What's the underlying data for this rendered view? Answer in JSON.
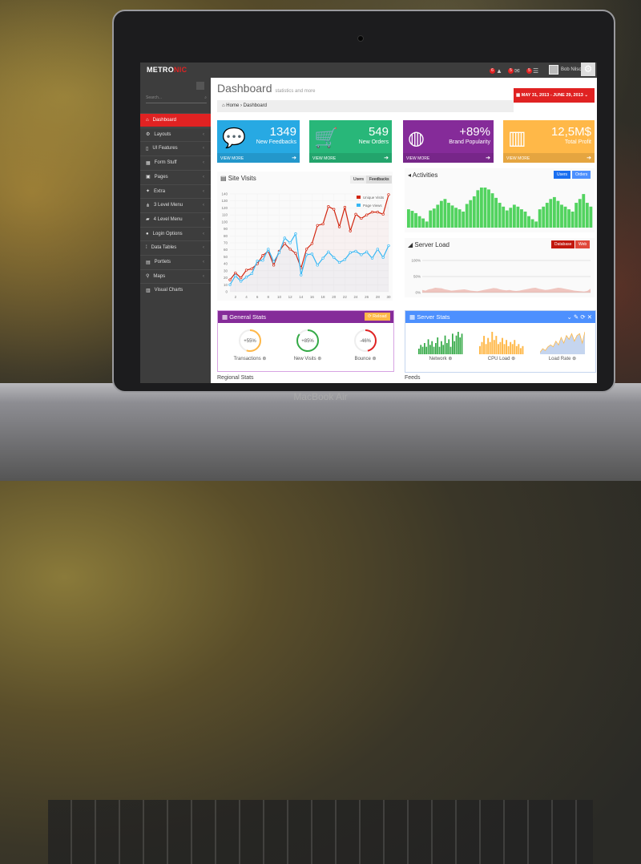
{
  "app": {
    "logo_main": "METRO",
    "logo_accent": "NIC",
    "device_brand": "MacBook Air"
  },
  "topbar": {
    "notifications": [
      {
        "icon": "warning-icon",
        "count": "6"
      },
      {
        "icon": "inbox-icon",
        "count": "5"
      },
      {
        "icon": "tasks-icon",
        "count": "5"
      }
    ],
    "user_name": "Bob Nilson"
  },
  "sidebar": {
    "search_placeholder": "Search...",
    "items": [
      {
        "label": "Dashboard",
        "icon": "home-icon",
        "active": true
      },
      {
        "label": "Layouts",
        "icon": "cogs-icon"
      },
      {
        "label": "UI Features",
        "icon": "bookmark-icon"
      },
      {
        "label": "Form Stuff",
        "icon": "table-icon"
      },
      {
        "label": "Pages",
        "icon": "briefcase-icon"
      },
      {
        "label": "Extra",
        "icon": "gift-icon"
      },
      {
        "label": "3 Level Menu",
        "icon": "sitemap-icon"
      },
      {
        "label": "4 Level Menu",
        "icon": "folder-icon"
      },
      {
        "label": "Login Options",
        "icon": "user-icon"
      },
      {
        "label": "Data Tables",
        "icon": "grid-icon"
      },
      {
        "label": "Portlets",
        "icon": "file-icon"
      },
      {
        "label": "Maps",
        "icon": "map-marker-icon"
      },
      {
        "label": "Visual Charts",
        "icon": "bar-chart-icon"
      }
    ]
  },
  "header": {
    "title": "Dashboard",
    "subtitle": "statistics and more",
    "breadcrumb": [
      "Home",
      "Dashboard"
    ],
    "date_range": "MAY 31, 2013 - JUNE 29, 2013"
  },
  "tiles": [
    {
      "value": "1349",
      "label": "New Feedbacks",
      "more": "VIEW MORE",
      "color": "#27a9e3",
      "icon": "comments-icon"
    },
    {
      "value": "549",
      "label": "New Orders",
      "more": "VIEW MORE",
      "color": "#28b779",
      "icon": "shopping-cart-icon"
    },
    {
      "value": "+89%",
      "label": "Brand Popularity",
      "more": "VIEW MORE",
      "color": "#852b99",
      "icon": "globe-icon"
    },
    {
      "value": "12,5M$",
      "label": "Total Profit",
      "more": "VIEW MORE",
      "color": "#ffb848",
      "icon": "bar-chart-icon"
    }
  ],
  "site_visits": {
    "title": "Site Visits",
    "tabs": [
      "Users",
      "Feedbacks"
    ]
  },
  "activities": {
    "title": "Activities",
    "tabs": [
      "Users",
      "Orders"
    ]
  },
  "server_load": {
    "title": "Server Load",
    "tabs": [
      "Database",
      "Web"
    ]
  },
  "general_stats": {
    "title": "General Stats",
    "reload": "Reload",
    "gauges": [
      {
        "value": "+55%",
        "label": "Transactions",
        "percent": 55,
        "color": "#ffb848"
      },
      {
        "value": "+85%",
        "label": "New Visits",
        "percent": 85,
        "color": "#35aa47"
      },
      {
        "value": "-46%",
        "label": "Bounce",
        "percent": 46,
        "color": "#e02222"
      }
    ]
  },
  "server_stats": {
    "title": "Server Stats",
    "sparks": [
      {
        "label": "Network",
        "type": "bar",
        "color": "#35aa47",
        "values": [
          3,
          5,
          4,
          6,
          4,
          8,
          5,
          7,
          4,
          6,
          9,
          4,
          7,
          5,
          10,
          6,
          8,
          4,
          11,
          7,
          10,
          12,
          9,
          11
        ]
      },
      {
        "label": "CPU Load",
        "type": "bar",
        "color": "#ffb848",
        "values": [
          4,
          6,
          9,
          5,
          8,
          6,
          11,
          7,
          9,
          5,
          6,
          8,
          5,
          7,
          4,
          6,
          5,
          7,
          4,
          5,
          3,
          4
        ]
      },
      {
        "label": "Load Rate",
        "type": "area",
        "color": "#ffb848",
        "fill": "#c5d5ef",
        "values": [
          1,
          3,
          2,
          4,
          5,
          4,
          7,
          5,
          9,
          6,
          10,
          8,
          11,
          7,
          10,
          11,
          6,
          12
        ]
      }
    ]
  },
  "below": {
    "regional_stats": "Regional Stats",
    "feeds": "Feeds"
  },
  "chart_data": [
    {
      "type": "line",
      "title": "Site Visits",
      "ylim": [
        0,
        140
      ],
      "yticks": [
        0,
        10,
        20,
        30,
        40,
        50,
        60,
        70,
        80,
        90,
        100,
        110,
        120,
        130,
        140
      ],
      "xticks": [
        2,
        4,
        6,
        8,
        10,
        12,
        14,
        16,
        18,
        20,
        22,
        24,
        26,
        28,
        30
      ],
      "legend": "top-right",
      "grid": true,
      "x": [
        1,
        2,
        3,
        4,
        5,
        6,
        7,
        8,
        9,
        10,
        11,
        12,
        13,
        14,
        15,
        16,
        17,
        18,
        19,
        20,
        21,
        22,
        23,
        24,
        25,
        26,
        27,
        28,
        29,
        30
      ],
      "series": [
        {
          "name": "Unique Visits",
          "color": "#d12610",
          "values": [
            17,
            27,
            20,
            31,
            33,
            40,
            52,
            58,
            38,
            58,
            69,
            61,
            55,
            34,
            61,
            69,
            95,
            97,
            122,
            118,
            93,
            121,
            87,
            111,
            105,
            110,
            114,
            114,
            111,
            139
          ]
        },
        {
          "name": "Page Views",
          "color": "#37b7f3",
          "values": [
            10,
            23,
            15,
            21,
            26,
            44,
            45,
            61,
            43,
            56,
            77,
            70,
            83,
            24,
            53,
            54,
            38,
            48,
            57,
            49,
            42,
            46,
            56,
            58,
            53,
            57,
            48,
            61,
            49,
            66
          ]
        }
      ]
    },
    {
      "type": "bar",
      "title": "Activities",
      "color": "#52d35f",
      "values": [
        48,
        44,
        38,
        30,
        24,
        16,
        45,
        50,
        60,
        70,
        75,
        65,
        58,
        52,
        48,
        42,
        62,
        72,
        82,
        98,
        105,
        105,
        100,
        90,
        78,
        65,
        55,
        45,
        52,
        60,
        55,
        48,
        42,
        30,
        22,
        16,
        48,
        55,
        65,
        75,
        80,
        70,
        60,
        55,
        48,
        42,
        65,
        75,
        88,
        65,
        55
      ]
    },
    {
      "type": "area",
      "title": "Server Load",
      "yticks": [
        "0%",
        "50%",
        "100%"
      ],
      "ylim": [
        0,
        100
      ],
      "color": "#d12610",
      "values": [
        8,
        6,
        10,
        12,
        15,
        14,
        13,
        10,
        8,
        6,
        7,
        8,
        9,
        10,
        8,
        6,
        5,
        4,
        6,
        8,
        10,
        12,
        14,
        13,
        10,
        8,
        7,
        8,
        6,
        5,
        6,
        8,
        10,
        12,
        14,
        15,
        12,
        10,
        8,
        9,
        11,
        13,
        15,
        14,
        12,
        10,
        8,
        6,
        5,
        4,
        3,
        5,
        12
      ]
    }
  ]
}
